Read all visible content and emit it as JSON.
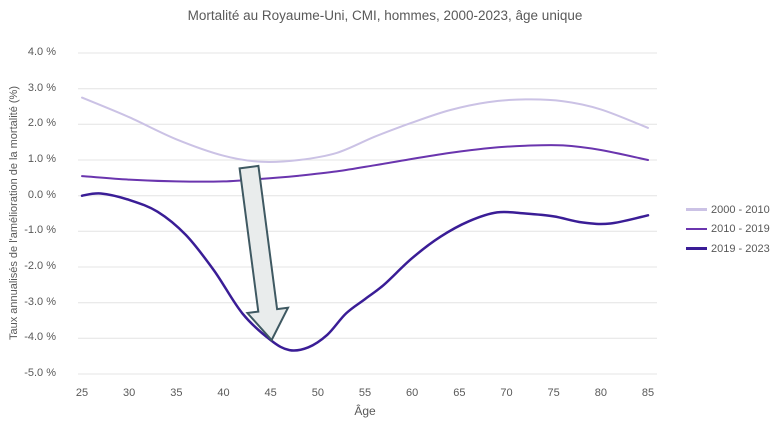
{
  "title": "Mortalité au Royaume-Uni, CMI, hommes, 2000-2023, âge unique",
  "chart_data": {
    "type": "line",
    "title": "Mortalité au Royaume-Uni, CMI, hommes, 2000-2023, âge unique",
    "xlabel": "Âge",
    "ylabel": "Taux annualisés de l'amélioration de la mortalité (%)",
    "xlim": [
      25,
      85
    ],
    "ylim": [
      -5,
      4
    ],
    "grid": "horizontal",
    "legend_position": "right",
    "x_ticks": [
      25,
      30,
      35,
      40,
      45,
      50,
      55,
      60,
      65,
      70,
      75,
      80,
      85
    ],
    "y_ticks": {
      "values": [
        4,
        3,
        2,
        1,
        0,
        -1,
        -2,
        -3,
        -4,
        -5
      ],
      "labels": [
        "4.0 %",
        "3.0 %",
        "2.0 %",
        "1.0 %",
        "0.0 %",
        "-1.0 %",
        "-2.0 %",
        "-3.0 %",
        "-4.0 %",
        "-5.0 %"
      ]
    },
    "series": [
      {
        "name": "2000 - 2010",
        "color": "#cbc2e5",
        "width": 2,
        "x": [
          25,
          30,
          35,
          40,
          44,
          48,
          52,
          56,
          60,
          64,
          68,
          72,
          76,
          80,
          85
        ],
        "values": [
          2.75,
          2.2,
          1.58,
          1.12,
          0.95,
          1.0,
          1.2,
          1.65,
          2.05,
          2.4,
          2.62,
          2.7,
          2.65,
          2.42,
          1.9
        ]
      },
      {
        "name": "2010 - 2019",
        "color": "#6a35ae",
        "width": 2,
        "x": [
          25,
          30,
          35,
          40,
          44,
          48,
          52,
          56,
          60,
          64,
          68,
          72,
          76,
          80,
          85
        ],
        "values": [
          0.55,
          0.45,
          0.4,
          0.4,
          0.47,
          0.56,
          0.68,
          0.85,
          1.03,
          1.2,
          1.33,
          1.4,
          1.41,
          1.28,
          1.0
        ]
      },
      {
        "name": "2019 - 2023",
        "color": "#3a1d96",
        "width": 2.5,
        "x": [
          25,
          27,
          30,
          33,
          36,
          39,
          42,
          45,
          47,
          49,
          51,
          53,
          55,
          57,
          60,
          63,
          66,
          69,
          72,
          75,
          78,
          81,
          85
        ],
        "values": [
          0.0,
          0.06,
          -0.12,
          -0.45,
          -1.1,
          -2.1,
          -3.3,
          -4.05,
          -4.33,
          -4.25,
          -3.9,
          -3.3,
          -2.9,
          -2.5,
          -1.75,
          -1.15,
          -0.72,
          -0.47,
          -0.5,
          -0.58,
          -0.75,
          -0.78,
          -0.55
        ]
      }
    ],
    "annotation_arrow": {
      "tail": {
        "age": 42.7,
        "value": 0.8
      },
      "tip": {
        "age": 45.1,
        "value": -4.05
      },
      "tail_width": 19,
      "head_width": 41,
      "head_length": 30,
      "fill": "#e9ecec",
      "stroke": "#3f5962",
      "stroke_width": 2
    },
    "gridline_color": "#e4e4e4"
  }
}
